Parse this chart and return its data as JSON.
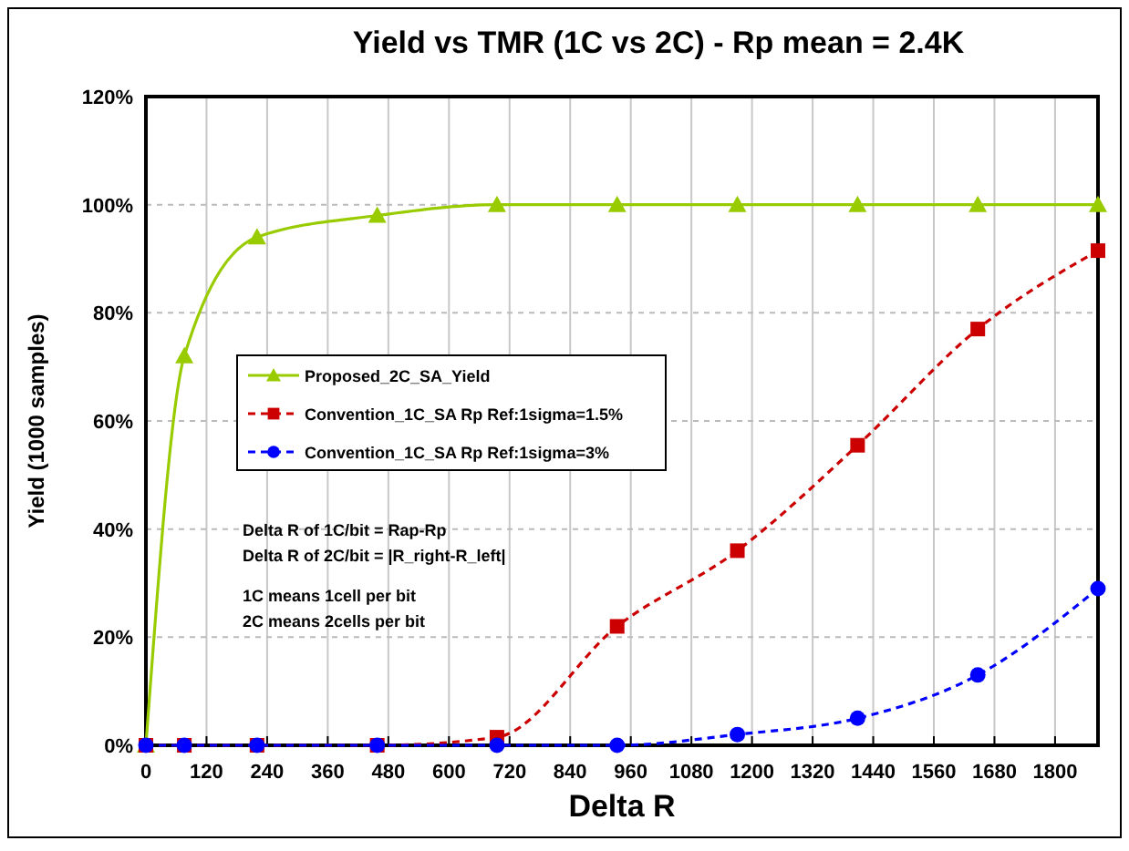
{
  "chart_data": {
    "type": "line",
    "title": "Yield vs TMR (1C vs 2C) - Rp mean = 2.4K",
    "xlabel": "Delta R",
    "ylabel": "Yield (1000 samples)",
    "x": [
      0,
      76,
      220,
      458,
      695,
      933,
      1171,
      1409,
      1647,
      1885
    ],
    "xlim": [
      0,
      1885
    ],
    "xticks": [
      0,
      120,
      240,
      360,
      480,
      600,
      720,
      840,
      960,
      1080,
      1200,
      1320,
      1440,
      1560,
      1680,
      1800
    ],
    "ylim": [
      0,
      120
    ],
    "yticks": [
      {
        "value": 0,
        "label": "0%"
      },
      {
        "value": 20,
        "label": "20%"
      },
      {
        "value": 40,
        "label": "40%"
      },
      {
        "value": 60,
        "label": "60%"
      },
      {
        "value": 80,
        "label": "80%"
      },
      {
        "value": 100,
        "label": "100%"
      },
      {
        "value": 120,
        "label": "120%"
      }
    ],
    "grid": true,
    "legend": "left",
    "series": [
      {
        "name": "Proposed_2C_SA_Yield",
        "color": "#99cc00",
        "marker": "triangle",
        "line_style": "solid",
        "values": [
          0,
          72,
          94,
          98,
          100,
          100,
          100,
          100,
          100,
          100
        ]
      },
      {
        "name": "Convention_1C_SA Rp Ref:1sigma=1.5%",
        "color": "#cc0000",
        "marker": "square",
        "line_style": "dashed",
        "values": [
          0,
          0,
          0,
          0,
          1.5,
          22,
          36,
          55.5,
          77,
          91.5
        ]
      },
      {
        "name": "Convention_1C_SA Rp Ref:1sigma=3%",
        "color": "#0000ff",
        "marker": "circle",
        "line_style": "dashed",
        "values": [
          0,
          0,
          0,
          0,
          0,
          0,
          2,
          5,
          13,
          29
        ]
      }
    ],
    "annotations": [
      "Delta R of 1C/bit = Rap-Rp",
      "Delta R of 2C/bit = |R_right-R_left|",
      "1C means 1cell per bit",
      "2C means 2cells per bit"
    ]
  }
}
